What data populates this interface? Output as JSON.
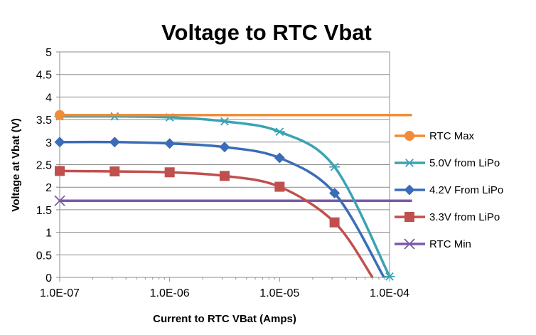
{
  "chart_data": {
    "type": "line",
    "title": "Voltage to RTC Vbat",
    "xlabel": "Current to RTC VBat (Amps)",
    "ylabel": "Voltage at Vbat (V)",
    "xscale": "log",
    "xlim": [
      1e-07,
      0.0001
    ],
    "ylim": [
      0,
      5
    ],
    "xticks": [
      1e-07,
      1e-06,
      1e-05,
      0.0001
    ],
    "xtick_labels": [
      "1.0E-07",
      "1.0E-06",
      "1.0E-05",
      "1.0E-04"
    ],
    "yticks": [
      0,
      0.5,
      1,
      1.5,
      2,
      2.5,
      3,
      3.5,
      4,
      4.5,
      5
    ],
    "ytick_labels": [
      "0",
      "0.5",
      "1",
      "1.5",
      "2",
      "2.5",
      "3",
      "3.5",
      "4",
      "4.5",
      "5"
    ],
    "grid": "horizontal",
    "legend_position": "right",
    "series": [
      {
        "name": "RTC Max",
        "color": "#f08c3a",
        "marker": "circle",
        "x": [
          1e-07
        ],
        "y": [
          3.6
        ],
        "line_x": [
          1e-07,
          0.00016
        ],
        "line_y": [
          3.6,
          3.6
        ]
      },
      {
        "name": "5.0V from LiPo",
        "color": "#3aa3b4",
        "marker": "asterisk",
        "x": [
          1e-07,
          3.16e-07,
          1e-06,
          3.16e-06,
          1e-05,
          3.16e-05,
          0.0001
        ],
        "y": [
          3.57,
          3.57,
          3.55,
          3.46,
          3.23,
          2.45,
          0.02
        ],
        "line_x": [
          1e-07,
          3.16e-07,
          1e-06,
          3.16e-06,
          1e-05,
          3.16e-05,
          0.0001
        ],
        "line_y": [
          3.57,
          3.57,
          3.55,
          3.46,
          3.23,
          2.45,
          0.02
        ]
      },
      {
        "name": "4.2V From LiPo",
        "color": "#3b6cb8",
        "marker": "diamond",
        "x": [
          1e-07,
          3.16e-07,
          1e-06,
          3.16e-06,
          1e-05,
          3.16e-05
        ],
        "y": [
          3.0,
          3.0,
          2.97,
          2.89,
          2.65,
          1.87
        ],
        "line_x": [
          1e-07,
          3.16e-07,
          1e-06,
          3.16e-06,
          1e-05,
          3.16e-05,
          8.9e-05
        ],
        "line_y": [
          3.0,
          3.0,
          2.97,
          2.89,
          2.65,
          1.87,
          0.0
        ]
      },
      {
        "name": "3.3V from LiPo",
        "color": "#c0504d",
        "marker": "square",
        "x": [
          1e-07,
          3.16e-07,
          1e-06,
          3.16e-06,
          1e-05,
          3.16e-05
        ],
        "y": [
          2.36,
          2.35,
          2.33,
          2.25,
          2.01,
          1.22
        ],
        "line_x": [
          1e-07,
          3.16e-07,
          1e-06,
          3.16e-06,
          1e-05,
          3.16e-05,
          7e-05
        ],
        "line_y": [
          2.36,
          2.35,
          2.33,
          2.25,
          2.01,
          1.22,
          0.0
        ]
      },
      {
        "name": "RTC Min",
        "color": "#7b5aa6",
        "marker": "x",
        "x": [
          1e-07
        ],
        "y": [
          1.7
        ],
        "line_x": [
          1e-07,
          0.00016
        ],
        "line_y": [
          1.7,
          1.7
        ]
      }
    ]
  }
}
